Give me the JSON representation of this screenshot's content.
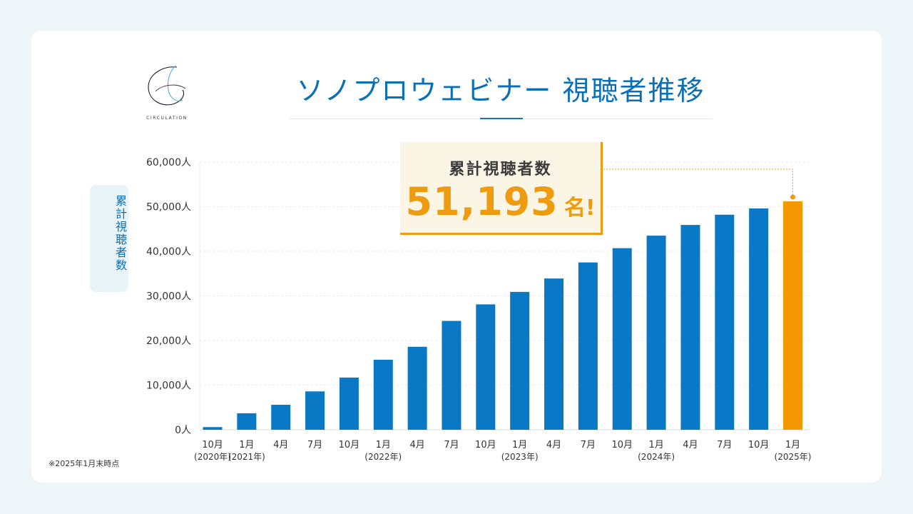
{
  "brand": {
    "name": "CIRCULATION"
  },
  "title": "ソノプロウェビナー 視聴者推移",
  "y_axis_label": "累計視聴者数",
  "callout": {
    "label": "累計視聴者数",
    "value": "51,193",
    "unit": "名!"
  },
  "footnote": "※2025年1月末時点",
  "colors": {
    "bar": "#0b78c6",
    "highlight": "#f39800",
    "title": "#0b6fb6",
    "background": "#eef6fa"
  },
  "chart_data": {
    "type": "bar",
    "title": "ソノプロウェビナー 視聴者推移",
    "ylabel": "累計視聴者数",
    "xlabel": "",
    "ylim": [
      0,
      60000
    ],
    "ytick_labels": [
      "0人",
      "10,000人",
      "20,000人",
      "30,000人",
      "40,000人",
      "50,000人",
      "60,000人"
    ],
    "ytick_values": [
      0,
      10000,
      20000,
      30000,
      40000,
      50000,
      60000
    ],
    "grid": true,
    "categories": [
      {
        "month": "10月",
        "year": "(2020年)"
      },
      {
        "month": "1月",
        "year": "(2021年)"
      },
      {
        "month": "4月",
        "year": ""
      },
      {
        "month": "7月",
        "year": ""
      },
      {
        "month": "10月",
        "year": ""
      },
      {
        "month": "1月",
        "year": "(2022年)"
      },
      {
        "month": "4月",
        "year": ""
      },
      {
        "month": "7月",
        "year": ""
      },
      {
        "month": "10月",
        "year": ""
      },
      {
        "month": "1月",
        "year": "(2023年)"
      },
      {
        "month": "4月",
        "year": ""
      },
      {
        "month": "7月",
        "year": ""
      },
      {
        "month": "10月",
        "year": ""
      },
      {
        "month": "1月",
        "year": "(2024年)"
      },
      {
        "month": "4月",
        "year": ""
      },
      {
        "month": "7月",
        "year": ""
      },
      {
        "month": "10月",
        "year": ""
      },
      {
        "month": "1月",
        "year": "(2025年)"
      }
    ],
    "values": [
      600,
      3700,
      5600,
      8600,
      11700,
      15700,
      18600,
      24400,
      28100,
      30900,
      33900,
      37500,
      40700,
      43500,
      45900,
      48200,
      49600,
      51193
    ],
    "highlight_index": 17
  }
}
